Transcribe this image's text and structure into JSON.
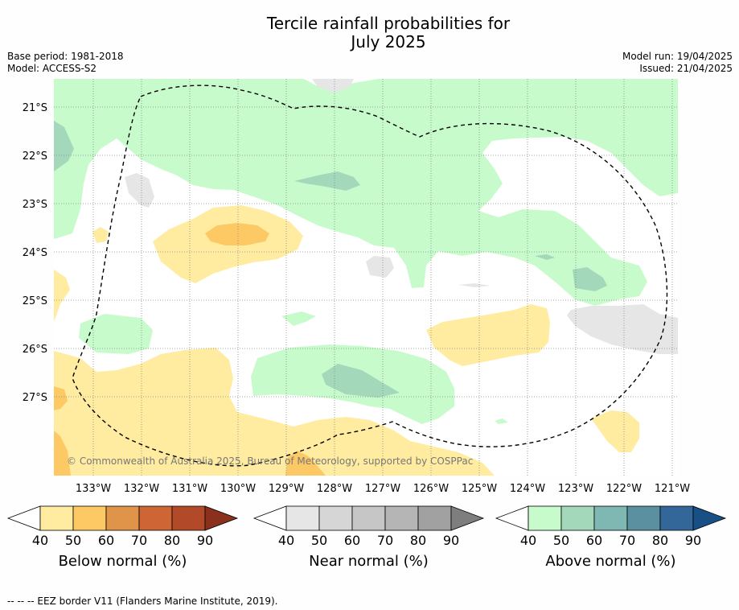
{
  "title_line1": "Tercile rainfall probabilities for",
  "title_line2": "July 2025",
  "base_period": "Base period: 1981-2018",
  "model": "Model: ACCESS-S2",
  "model_run": "Model run: 19/04/2025",
  "issued": "Issued: 21/04/2025",
  "lat_labels": [
    "21°S",
    "22°S",
    "23°S",
    "24°S",
    "25°S",
    "26°S",
    "27°S"
  ],
  "lon_labels": [
    "133°W",
    "132°W",
    "131°W",
    "130°W",
    "129°W",
    "128°W",
    "127°W",
    "126°W",
    "125°W",
    "124°W",
    "123°W",
    "122°W",
    "121°W"
  ],
  "copyright": "© Commonwealth of Australia 2025, Bureau of Meteorology, supported by COSPPac",
  "colorbars": [
    {
      "label": "Below normal (%)",
      "ticks": [
        "40",
        "50",
        "60",
        "70",
        "80",
        "90"
      ],
      "colors": [
        "#ffffff",
        "#ffeca0",
        "#fdc964",
        "#e0944a",
        "#cd6634",
        "#b24a29",
        "#8c301e"
      ]
    },
    {
      "label": "Near normal (%)",
      "ticks": [
        "40",
        "50",
        "60",
        "70",
        "80",
        "90"
      ],
      "colors": [
        "#ffffff",
        "#e6e6e6",
        "#d6d6d6",
        "#c6c6c6",
        "#b5b5b5",
        "#a1a1a1",
        "#7e7e7e"
      ]
    },
    {
      "label": "Above normal (%)",
      "ticks": [
        "40",
        "50",
        "60",
        "70",
        "80",
        "90"
      ],
      "colors": [
        "#ffffff",
        "#c8fbcb",
        "#a3d8bb",
        "#7fb7b2",
        "#5a909f",
        "#33679a",
        "#184f85"
      ]
    }
  ],
  "footer": "--  --  -- EEZ border V11 (Flanders Marine Institute, 2019)."
}
